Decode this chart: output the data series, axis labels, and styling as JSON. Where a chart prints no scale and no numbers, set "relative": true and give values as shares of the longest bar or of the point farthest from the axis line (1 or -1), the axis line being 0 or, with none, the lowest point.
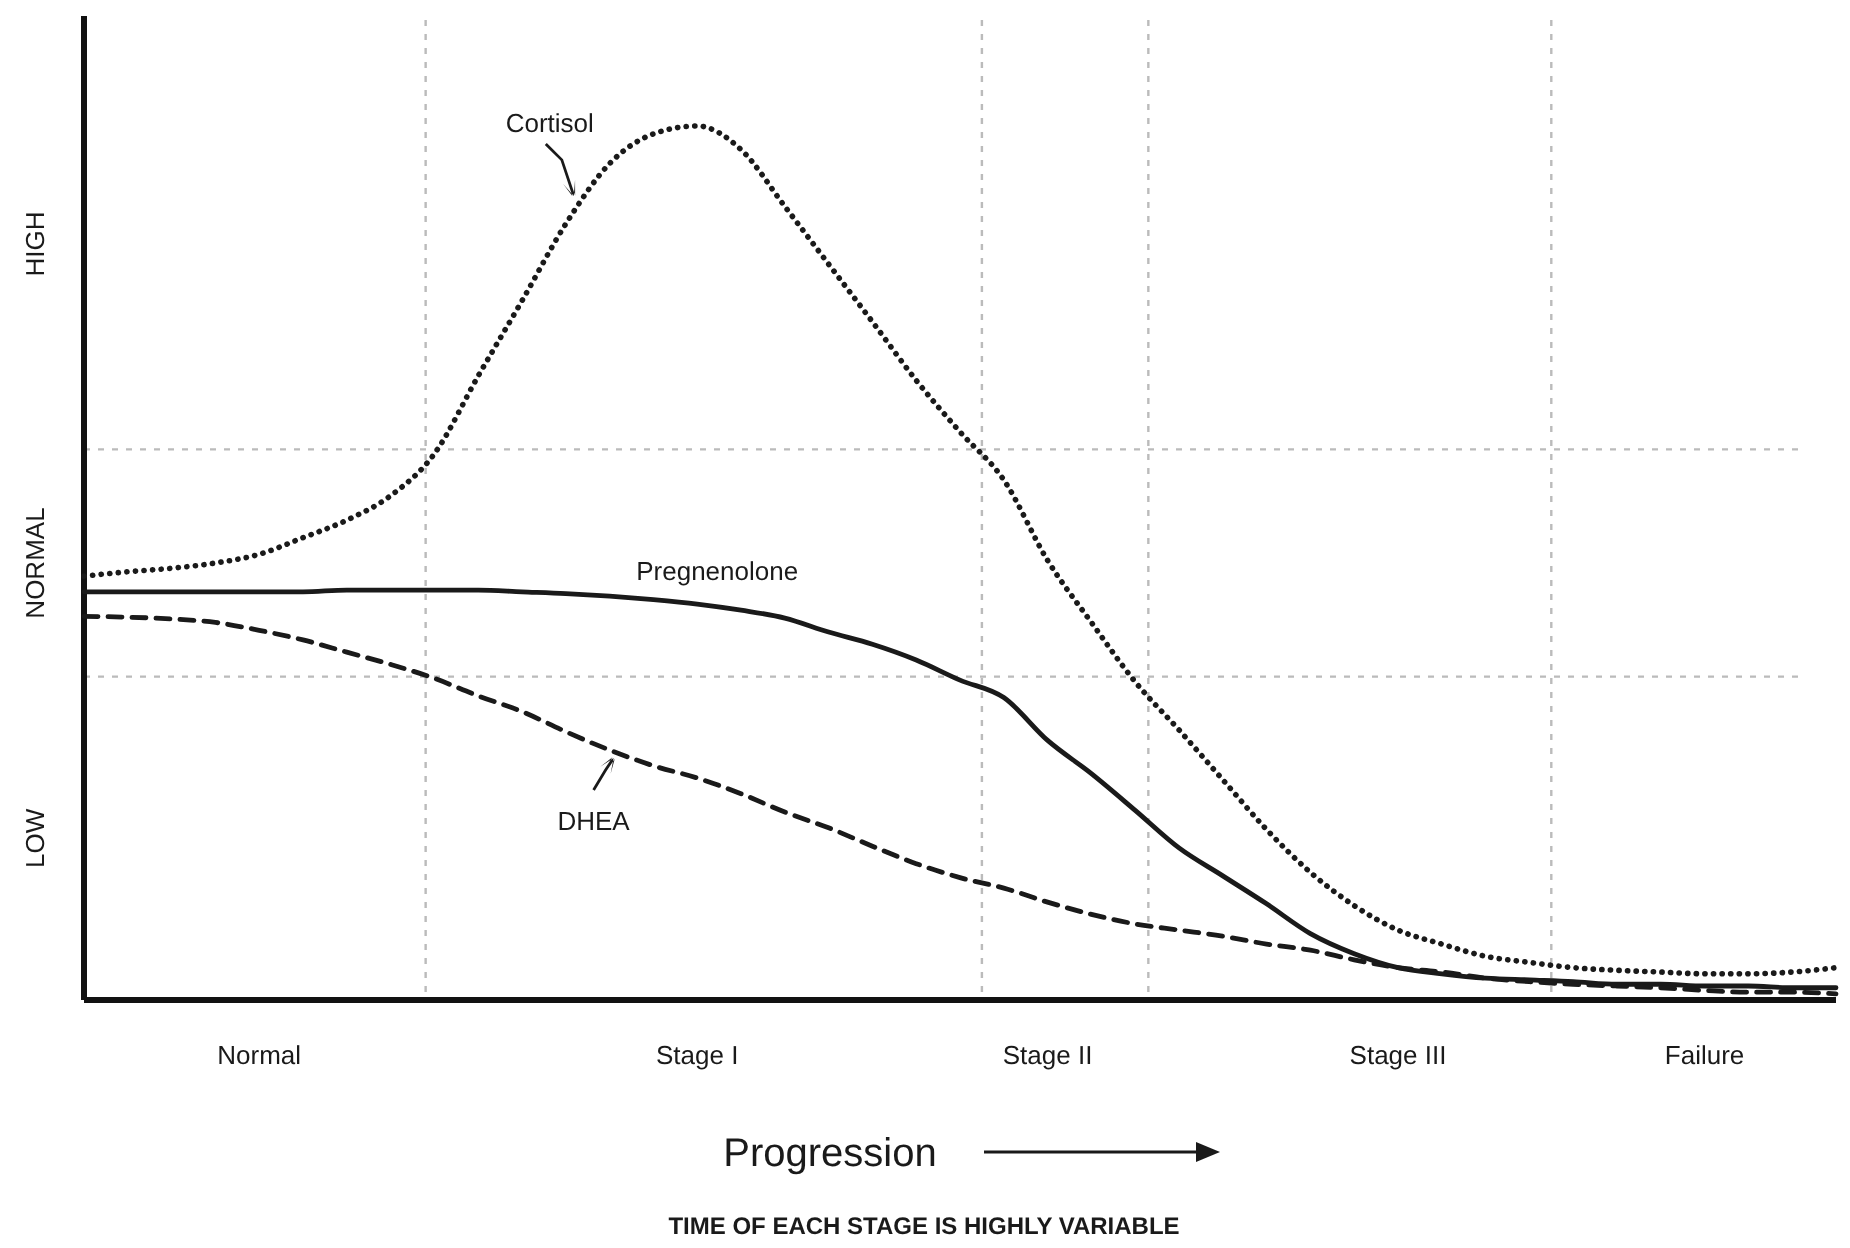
{
  "chart_data": {
    "type": "line",
    "relative": true,
    "xlabel": "Progression",
    "categories": [
      null,
      null,
      null,
      null,
      "Normal",
      null,
      null,
      null,
      null,
      null,
      null,
      null,
      null,
      null,
      "Stage I",
      null,
      null,
      null,
      null,
      null,
      null,
      null,
      "Stage II",
      null,
      null,
      null,
      null,
      null,
      null,
      null,
      "Stage III",
      null,
      null,
      null,
      null,
      null,
      null,
      "Failure",
      null,
      null,
      null
    ],
    "series": [
      {
        "name": "Cortisol",
        "color": "#1a1a1a",
        "line_style": "dotted",
        "values": [
          0.485,
          0.49,
          0.494,
          0.5,
          0.51,
          0.529,
          0.549,
          0.577,
          0.625,
          0.714,
          0.8,
          0.888,
          0.957,
          0.991,
          1,
          0.973,
          0.908,
          0.842,
          0.776,
          0.709,
          0.65,
          0.595,
          0.503,
          0.432,
          0.364,
          0.309,
          0.252,
          0.195,
          0.146,
          0.108,
          0.08,
          0.064,
          0.05,
          0.043,
          0.037,
          0.034,
          0.032,
          0.03,
          0.03,
          0.032,
          0.037
        ]
      },
      {
        "name": "Pregnenolone",
        "color": "#1a1a1a",
        "line_style": "solid",
        "values": [
          0.467,
          0.467,
          0.467,
          0.467,
          0.467,
          0.467,
          0.469,
          0.469,
          0.469,
          0.469,
          0.467,
          0.465,
          0.462,
          0.458,
          0.453,
          0.446,
          0.437,
          0.421,
          0.407,
          0.389,
          0.366,
          0.346,
          0.297,
          0.259,
          0.217,
          0.174,
          0.142,
          0.11,
          0.076,
          0.053,
          0.037,
          0.03,
          0.025,
          0.023,
          0.021,
          0.018,
          0.018,
          0.016,
          0.016,
          0.014,
          0.014
        ]
      },
      {
        "name": "DHEA",
        "color": "#1a1a1a",
        "line_style": "dashed",
        "values": [
          0.439,
          0.438,
          0.436,
          0.432,
          0.423,
          0.412,
          0.398,
          0.384,
          0.368,
          0.348,
          0.33,
          0.307,
          0.286,
          0.268,
          0.254,
          0.236,
          0.215,
          0.197,
          0.176,
          0.156,
          0.14,
          0.128,
          0.112,
          0.098,
          0.087,
          0.08,
          0.073,
          0.064,
          0.057,
          0.046,
          0.037,
          0.032,
          0.025,
          0.021,
          0.018,
          0.016,
          0.014,
          0.011,
          0.009,
          0.009,
          0.007
        ]
      }
    ],
    "ref_lines": [
      {
        "axis": "y",
        "value": 0.63,
        "color": "#bbbbbb",
        "line_style": "dotted"
      },
      {
        "axis": "y",
        "value": 0.37,
        "color": "#bbbbbb",
        "line_style": "dotted"
      }
    ],
    "annotations": [
      "HIGH",
      "NORMAL",
      "LOW",
      "TIME OF EACH STAGE IS HIGHLY VARIABLE"
    ]
  }
}
